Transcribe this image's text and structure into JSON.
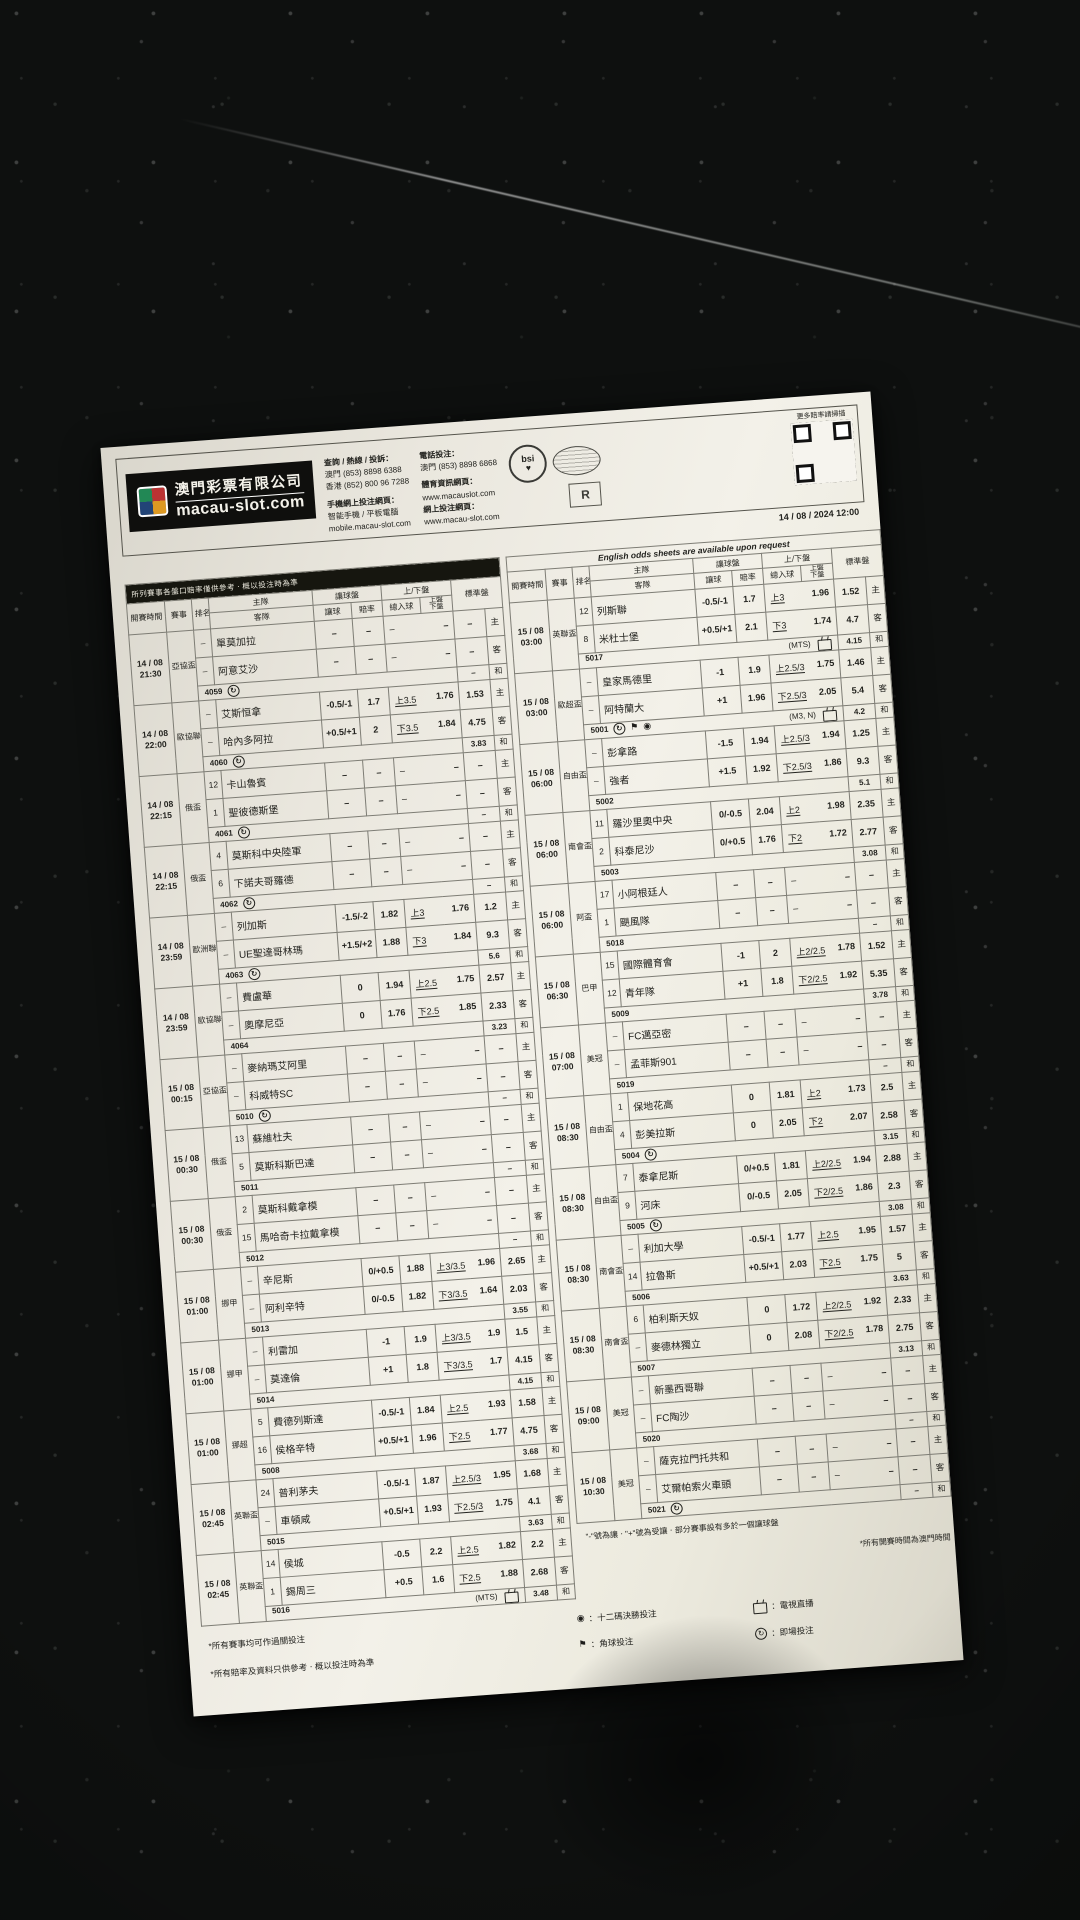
{
  "header": {
    "company_name": "澳門彩票有限公司",
    "company_domain": "macau-slot.com",
    "enquiry_title": "查詢 / 熱線 / 投訴：",
    "enquiry_macau": "澳門 (853) 8898 6388",
    "enquiry_hk": "香港 (852) 800 96 7288",
    "mobile_title": "手機網上投注網頁：",
    "mobile_sub": "智能手機 / 平板電腦",
    "mobile_url": "mobile.macau-slot.com",
    "tel_bet_title": "電話投注：",
    "tel_bet_macau": "澳門 (853) 8898 6868",
    "sports_info_title": "體育資訊網頁：",
    "sports_info_url": "www.macauslot.com",
    "online_bet_title": "網上投注網頁：",
    "online_bet_url": "www.macau-slot.com",
    "bsi_label": "bsi",
    "rg_label": "R",
    "qr_caption": "更多賠率請掃描",
    "print_datetime": "14 / 08 / 2024 12:00",
    "english_note": "English odds sheets are available upon request"
  },
  "columns": {
    "time": "開賽時間",
    "comp": "賽事",
    "rank": "排名",
    "home": "主隊",
    "away": "客隊",
    "hcp_group": "讓球盤",
    "hcp": "讓球",
    "odds": "賠率",
    "ou_group": "上/下盤",
    "ou_total": "總入球",
    "ou_updown": "上盤\n下盤",
    "std": "標準盤"
  },
  "labels": {
    "home": "主",
    "away": "客",
    "draw": "和"
  },
  "left_table": {
    "banner": "所列賽事各盤口賠率僅供參考ㆍ概以投注時為準",
    "blocks": [
      {
        "date": "14 / 08",
        "time": "21:30",
        "comp": "亞協盃",
        "home": {
          "no": "–",
          "name": "單莫加拉",
          "hcp": "–",
          "ho": "–",
          "oul": "–",
          "ouo": "–",
          "std": "–"
        },
        "away": {
          "no": "–",
          "name": "阿意艾沙",
          "hcp": "–",
          "ho": "–",
          "oul": "–",
          "ouo": "–",
          "std": "–"
        },
        "draw": {
          "id": "4059",
          "icons": [
            "inplay"
          ],
          "note": "",
          "note_icons": [],
          "std": "–"
        }
      },
      {
        "date": "14 / 08",
        "time": "22:00",
        "comp": "歐協聯",
        "home": {
          "no": "–",
          "name": "艾斯恒拿",
          "hcp": "-0.5/-1",
          "ho": "1.7",
          "oul": "上3.5",
          "ouo": "1.76",
          "std": "1.53"
        },
        "away": {
          "no": "–",
          "name": "哈內多阿拉",
          "hcp": "+0.5/+1",
          "ho": "2",
          "oul": "下3.5",
          "ouo": "1.84",
          "std": "4.75"
        },
        "draw": {
          "id": "4060",
          "icons": [
            "inplay"
          ],
          "note": "",
          "note_icons": [],
          "std": "3.83"
        }
      },
      {
        "date": "14 / 08",
        "time": "22:15",
        "comp": "俄盃",
        "home": {
          "no": "12",
          "name": "卡山魯賓",
          "hcp": "–",
          "ho": "–",
          "oul": "–",
          "ouo": "–",
          "std": "–"
        },
        "away": {
          "no": "1",
          "name": "聖彼德斯堡",
          "hcp": "–",
          "ho": "–",
          "oul": "–",
          "ouo": "–",
          "std": "–"
        },
        "draw": {
          "id": "4061",
          "icons": [
            "inplay"
          ],
          "note": "",
          "note_icons": [],
          "std": "–"
        }
      },
      {
        "date": "14 / 08",
        "time": "22:15",
        "comp": "俄盃",
        "home": {
          "no": "4",
          "name": "莫斯科中央陸軍",
          "hcp": "–",
          "ho": "–",
          "oul": "–",
          "ouo": "–",
          "std": "–"
        },
        "away": {
          "no": "6",
          "name": "下諾夫哥羅德",
          "hcp": "–",
          "ho": "–",
          "oul": "–",
          "ouo": "–",
          "std": "–"
        },
        "draw": {
          "id": "4062",
          "icons": [
            "inplay"
          ],
          "note": "",
          "note_icons": [],
          "std": "–"
        }
      },
      {
        "date": "14 / 08",
        "time": "23:59",
        "comp": "歐洲聯",
        "home": {
          "no": "–",
          "name": "列加斯",
          "hcp": "-1.5/-2",
          "ho": "1.82",
          "oul": "上3",
          "ouo": "1.76",
          "std": "1.2"
        },
        "away": {
          "no": "–",
          "name": "UE聖達哥林瑪",
          "hcp": "+1.5/+2",
          "ho": "1.88",
          "oul": "下3",
          "ouo": "1.84",
          "std": "9.3"
        },
        "draw": {
          "id": "4063",
          "icons": [
            "inplay"
          ],
          "note": "",
          "note_icons": [],
          "std": "5.6"
        }
      },
      {
        "date": "14 / 08",
        "time": "23:59",
        "comp": "歐協聯",
        "home": {
          "no": "–",
          "name": "費盧華",
          "hcp": "0",
          "ho": "1.94",
          "oul": "上2.5",
          "ouo": "1.75",
          "std": "2.57"
        },
        "away": {
          "no": "–",
          "name": "奧摩尼亞",
          "hcp": "0",
          "ho": "1.76",
          "oul": "下2.5",
          "ouo": "1.85",
          "std": "2.33"
        },
        "draw": {
          "id": "4064",
          "icons": [],
          "note": "",
          "note_icons": [],
          "std": "3.23"
        }
      },
      {
        "date": "15 / 08",
        "time": "00:15",
        "comp": "亞協盃",
        "home": {
          "no": "–",
          "name": "麥納瑪艾阿里",
          "hcp": "–",
          "ho": "–",
          "oul": "–",
          "ouo": "–",
          "std": "–"
        },
        "away": {
          "no": "–",
          "name": "科威特SC",
          "hcp": "–",
          "ho": "–",
          "oul": "–",
          "ouo": "–",
          "std": "–"
        },
        "draw": {
          "id": "5010",
          "icons": [
            "inplay"
          ],
          "note": "",
          "note_icons": [],
          "std": "–"
        }
      },
      {
        "date": "15 / 08",
        "time": "00:30",
        "comp": "俄盃",
        "home": {
          "no": "13",
          "name": "蘇維杜夫",
          "hcp": "–",
          "ho": "–",
          "oul": "–",
          "ouo": "–",
          "std": "–"
        },
        "away": {
          "no": "5",
          "name": "莫斯科斯巴達",
          "hcp": "–",
          "ho": "–",
          "oul": "–",
          "ouo": "–",
          "std": "–"
        },
        "draw": {
          "id": "5011",
          "icons": [],
          "note": "",
          "note_icons": [],
          "std": "–"
        }
      },
      {
        "date": "15 / 08",
        "time": "00:30",
        "comp": "俄盃",
        "home": {
          "no": "2",
          "name": "莫斯科戴拿模",
          "hcp": "–",
          "ho": "–",
          "oul": "–",
          "ouo": "–",
          "std": "–"
        },
        "away": {
          "no": "15",
          "name": "馬哈奇卡拉戴拿模",
          "hcp": "–",
          "ho": "–",
          "oul": "–",
          "ouo": "–",
          "std": "–"
        },
        "draw": {
          "id": "5012",
          "icons": [],
          "note": "",
          "note_icons": [],
          "std": "–"
        }
      },
      {
        "date": "15 / 08",
        "time": "01:00",
        "comp": "挪甲",
        "home": {
          "no": "–",
          "name": "辛尼斯",
          "hcp": "0/+0.5",
          "ho": "1.88",
          "oul": "上3/3.5",
          "ouo": "1.96",
          "std": "2.65"
        },
        "away": {
          "no": "–",
          "name": "阿利辛特",
          "hcp": "0/-0.5",
          "ho": "1.82",
          "oul": "下3/3.5",
          "ouo": "1.64",
          "std": "2.03"
        },
        "draw": {
          "id": "5013",
          "icons": [],
          "note": "",
          "note_icons": [],
          "std": "3.55"
        }
      },
      {
        "date": "15 / 08",
        "time": "01:00",
        "comp": "挪甲",
        "home": {
          "no": "–",
          "name": "利雷加",
          "hcp": "-1",
          "ho": "1.9",
          "oul": "上3/3.5",
          "ouo": "1.9",
          "std": "1.5"
        },
        "away": {
          "no": "–",
          "name": "莫達倫",
          "hcp": "+1",
          "ho": "1.8",
          "oul": "下3/3.5",
          "ouo": "1.7",
          "std": "4.15"
        },
        "draw": {
          "id": "5014",
          "icons": [],
          "note": "",
          "note_icons": [],
          "std": "4.15"
        }
      },
      {
        "date": "15 / 08",
        "time": "01:00",
        "comp": "挪超",
        "home": {
          "no": "5",
          "name": "費德列斯達",
          "hcp": "-0.5/-1",
          "ho": "1.84",
          "oul": "上2.5",
          "ouo": "1.93",
          "std": "1.58"
        },
        "away": {
          "no": "16",
          "name": "侯格辛特",
          "hcp": "+0.5/+1",
          "ho": "1.96",
          "oul": "下2.5",
          "ouo": "1.77",
          "std": "4.75"
        },
        "draw": {
          "id": "5008",
          "icons": [],
          "note": "",
          "note_icons": [],
          "std": "3.68"
        }
      },
      {
        "date": "15 / 08",
        "time": "02:45",
        "comp": "英聯盃",
        "home": {
          "no": "24",
          "name": "普利茅夫",
          "hcp": "-0.5/-1",
          "ho": "1.87",
          "oul": "上2.5/3",
          "ouo": "1.95",
          "std": "1.68"
        },
        "away": {
          "no": "–",
          "name": "車頓咸",
          "hcp": "+0.5/+1",
          "ho": "1.93",
          "oul": "下2.5/3",
          "ouo": "1.75",
          "std": "4.1"
        },
        "draw": {
          "id": "5015",
          "icons": [],
          "note": "",
          "note_icons": [],
          "std": "3.63"
        }
      },
      {
        "date": "15 / 08",
        "time": "02:45",
        "comp": "英聯盃",
        "home": {
          "no": "14",
          "name": "侯城",
          "hcp": "-0.5",
          "ho": "2.2",
          "oul": "上2.5",
          "ouo": "1.82",
          "std": "2.2"
        },
        "away": {
          "no": "1",
          "name": "錫周三",
          "hcp": "+0.5",
          "ho": "1.6",
          "oul": "下2.5",
          "ouo": "1.88",
          "std": "2.68"
        },
        "draw": {
          "id": "5016",
          "icons": [],
          "note": "(MTS)",
          "note_icons": [
            "tv"
          ],
          "std": "3.48"
        }
      }
    ]
  },
  "right_table": {
    "blocks": [
      {
        "date": "15 / 08",
        "time": "03:00",
        "comp": "英聯盃",
        "home": {
          "no": "12",
          "name": "列斯聯",
          "hcp": "-0.5/-1",
          "ho": "1.7",
          "oul": "上3",
          "ouo": "1.96",
          "std": "1.52"
        },
        "away": {
          "no": "8",
          "name": "米杜士堡",
          "hcp": "+0.5/+1",
          "ho": "2.1",
          "oul": "下3",
          "ouo": "1.74",
          "std": "4.7"
        },
        "draw": {
          "id": "5017",
          "icons": [],
          "note": "(MTS)",
          "note_icons": [
            "tv"
          ],
          "std": "4.15"
        }
      },
      {
        "date": "15 / 08",
        "time": "03:00",
        "comp": "歐超盃",
        "home": {
          "no": "–",
          "name": "皇家馬德里",
          "hcp": "-1",
          "ho": "1.9",
          "oul": "上2.5/3",
          "ouo": "1.75",
          "std": "1.46"
        },
        "away": {
          "no": "–",
          "name": "阿特蘭大",
          "hcp": "+1",
          "ho": "1.96",
          "oul": "下2.5/3",
          "ouo": "2.05",
          "std": "5.4"
        },
        "draw": {
          "id": "5001",
          "icons": [
            "inplay",
            "corner",
            "penalty"
          ],
          "note": "(M3, N)",
          "note_icons": [
            "tv"
          ],
          "std": "4.2"
        }
      },
      {
        "date": "15 / 08",
        "time": "06:00",
        "comp": "自由盃",
        "home": {
          "no": "–",
          "name": "彭拿路",
          "hcp": "-1.5",
          "ho": "1.94",
          "oul": "上2.5/3",
          "ouo": "1.94",
          "std": "1.25"
        },
        "away": {
          "no": "–",
          "name": "強者",
          "hcp": "+1.5",
          "ho": "1.92",
          "oul": "下2.5/3",
          "ouo": "1.86",
          "std": "9.3"
        },
        "draw": {
          "id": "5002",
          "icons": [],
          "note": "",
          "note_icons": [],
          "std": "5.1"
        }
      },
      {
        "date": "15 / 08",
        "time": "06:00",
        "comp": "南會盃",
        "home": {
          "no": "11",
          "name": "羅沙里奧中央",
          "hcp": "0/-0.5",
          "ho": "2.04",
          "oul": "上2",
          "ouo": "1.98",
          "std": "2.35"
        },
        "away": {
          "no": "2",
          "name": "科泰尼沙",
          "hcp": "0/+0.5",
          "ho": "1.76",
          "oul": "下2",
          "ouo": "1.72",
          "std": "2.77"
        },
        "draw": {
          "id": "5003",
          "icons": [],
          "note": "",
          "note_icons": [],
          "std": "3.08"
        }
      },
      {
        "date": "15 / 08",
        "time": "06:00",
        "comp": "阿盃",
        "home": {
          "no": "17",
          "name": "小阿根廷人",
          "hcp": "–",
          "ho": "–",
          "oul": "–",
          "ouo": "–",
          "std": "–"
        },
        "away": {
          "no": "1",
          "name": "颶風隊",
          "hcp": "–",
          "ho": "–",
          "oul": "–",
          "ouo": "–",
          "std": "–"
        },
        "draw": {
          "id": "5018",
          "icons": [],
          "note": "",
          "note_icons": [],
          "std": "–"
        }
      },
      {
        "date": "15 / 08",
        "time": "06:30",
        "comp": "巴甲",
        "home": {
          "no": "15",
          "name": "國際體育會",
          "hcp": "-1",
          "ho": "2",
          "oul": "上2/2.5",
          "ouo": "1.78",
          "std": "1.52"
        },
        "away": {
          "no": "12",
          "name": "青年隊",
          "hcp": "+1",
          "ho": "1.8",
          "oul": "下2/2.5",
          "ouo": "1.92",
          "std": "5.35"
        },
        "draw": {
          "id": "5009",
          "icons": [],
          "note": "",
          "note_icons": [],
          "std": "3.78"
        }
      },
      {
        "date": "15 / 08",
        "time": "07:00",
        "comp": "美冠",
        "home": {
          "no": "–",
          "name": "FC邁亞密",
          "hcp": "–",
          "ho": "–",
          "oul": "–",
          "ouo": "–",
          "std": "–"
        },
        "away": {
          "no": "–",
          "name": "孟菲斯901",
          "hcp": "–",
          "ho": "–",
          "oul": "–",
          "ouo": "–",
          "std": "–"
        },
        "draw": {
          "id": "5019",
          "icons": [],
          "note": "",
          "note_icons": [],
          "std": "–"
        }
      },
      {
        "date": "15 / 08",
        "time": "08:30",
        "comp": "自由盃",
        "home": {
          "no": "1",
          "name": "保地花高",
          "hcp": "0",
          "ho": "1.81",
          "oul": "上2",
          "ouo": "1.73",
          "std": "2.5"
        },
        "away": {
          "no": "4",
          "name": "彭美拉斯",
          "hcp": "0",
          "ho": "2.05",
          "oul": "下2",
          "ouo": "2.07",
          "std": "2.58"
        },
        "draw": {
          "id": "5004",
          "icons": [
            "inplay"
          ],
          "note": "",
          "note_icons": [],
          "std": "3.15"
        }
      },
      {
        "date": "15 / 08",
        "time": "08:30",
        "comp": "自由盃",
        "home": {
          "no": "7",
          "name": "泰拿尼斯",
          "hcp": "0/+0.5",
          "ho": "1.81",
          "oul": "上2/2.5",
          "ouo": "1.94",
          "std": "2.88"
        },
        "away": {
          "no": "9",
          "name": "河床",
          "hcp": "0/-0.5",
          "ho": "2.05",
          "oul": "下2/2.5",
          "ouo": "1.86",
          "std": "2.3"
        },
        "draw": {
          "id": "5005",
          "icons": [
            "inplay"
          ],
          "note": "",
          "note_icons": [],
          "std": "3.08"
        }
      },
      {
        "date": "15 / 08",
        "time": "08:30",
        "comp": "南會盃",
        "home": {
          "no": "–",
          "name": "利加大學",
          "hcp": "-0.5/-1",
          "ho": "1.77",
          "oul": "上2.5",
          "ouo": "1.95",
          "std": "1.57"
        },
        "away": {
          "no": "14",
          "name": "拉魯斯",
          "hcp": "+0.5/+1",
          "ho": "2.03",
          "oul": "下2.5",
          "ouo": "1.75",
          "std": "5"
        },
        "draw": {
          "id": "5006",
          "icons": [],
          "note": "",
          "note_icons": [],
          "std": "3.63"
        }
      },
      {
        "date": "15 / 08",
        "time": "08:30",
        "comp": "南會盃",
        "home": {
          "no": "6",
          "name": "柏利斯天奴",
          "hcp": "0",
          "ho": "1.72",
          "oul": "上2/2.5",
          "ouo": "1.92",
          "std": "2.33"
        },
        "away": {
          "no": "–",
          "name": "麥德林獨立",
          "hcp": "0",
          "ho": "2.08",
          "oul": "下2/2.5",
          "ouo": "1.78",
          "std": "2.75"
        },
        "draw": {
          "id": "5007",
          "icons": [],
          "note": "",
          "note_icons": [],
          "std": "3.13"
        }
      },
      {
        "date": "15 / 08",
        "time": "09:00",
        "comp": "美冠",
        "home": {
          "no": "–",
          "name": "新墨西哥聯",
          "hcp": "–",
          "ho": "–",
          "oul": "–",
          "ouo": "–",
          "std": "–"
        },
        "away": {
          "no": "–",
          "name": "FC陶沙",
          "hcp": "–",
          "ho": "–",
          "oul": "–",
          "ouo": "–",
          "std": "–"
        },
        "draw": {
          "id": "5020",
          "icons": [],
          "note": "",
          "note_icons": [],
          "std": "–"
        }
      },
      {
        "date": "15 / 08",
        "time": "10:30",
        "comp": "美冠",
        "home": {
          "no": "–",
          "name": "薩克拉門托共和",
          "hcp": "–",
          "ho": "–",
          "oul": "–",
          "ouo": "–",
          "std": "–"
        },
        "away": {
          "no": "–",
          "name": "艾爾帕索火車頭",
          "hcp": "–",
          "ho": "–",
          "oul": "–",
          "ouo": "–",
          "std": "–"
        },
        "draw": {
          "id": "5021",
          "icons": [
            "inplay"
          ],
          "note": "",
          "note_icons": [],
          "std": "–"
        }
      }
    ]
  },
  "footer": {
    "note_handicap": "\"-\"號為讓ㆍ\"+\"號為受讓ㆍ部分賽事設有多於一個讓球盤",
    "note_time": "*所有開賽時間為澳門時間",
    "note_parlay": "*所有賽事均可作過關投注",
    "note_reference": "*所有賠率及資料只供參考ㆍ概以投注時為準",
    "legend_penalty": "：十二碼決勝投注",
    "legend_corner": "：角球投注",
    "legend_tv": "：電視直播",
    "legend_inplay": "：即場投注"
  }
}
